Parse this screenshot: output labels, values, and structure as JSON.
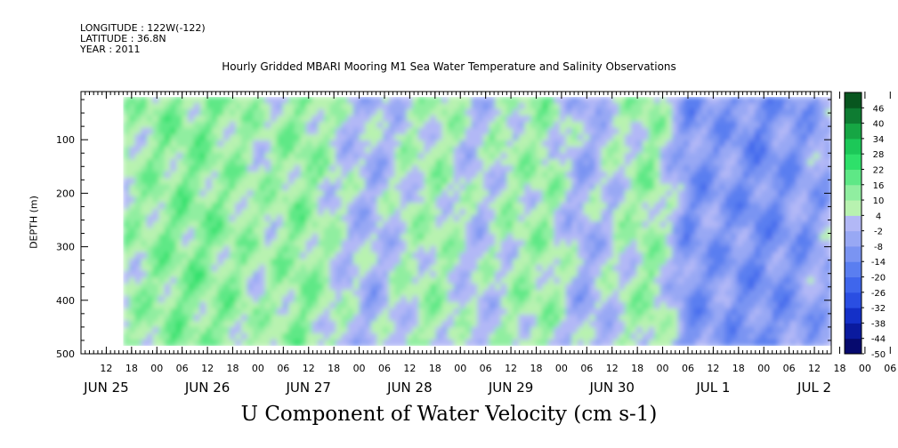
{
  "header": {
    "longitude": "LONGITUDE : 122W(-122)",
    "latitude": "LATITUDE : 36.8N",
    "year": "YEAR : 2011"
  },
  "chart_data": {
    "type": "heatmap",
    "title": "Hourly Gridded MBARI Mooring M1 Sea Water Temperature and Salinity Observations",
    "xlabel": "U Component of Water Velocity (cm s-1)",
    "ylabel": "DEPTH (m)",
    "x_range": [
      "2011-06-25T06:00",
      "2011-07-02T16:00"
    ],
    "data_start": "2011-06-25T16:00",
    "y_range": [
      500,
      10
    ],
    "y_data_range": [
      20,
      485
    ],
    "y_ticks": [
      100,
      200,
      300,
      400,
      500
    ],
    "x_hour_ticks": [
      "12",
      "18",
      "00",
      "06",
      "12",
      "18",
      "00",
      "06",
      "12",
      "18",
      "00",
      "06",
      "12",
      "18",
      "00",
      "06",
      "12",
      "18",
      "00",
      "06",
      "12",
      "18",
      "00",
      "06",
      "12",
      "18",
      "00",
      "06",
      "12",
      "18",
      "00",
      "06"
    ],
    "x_day_labels": [
      "JUN 25",
      "JUN 26",
      "JUN 27",
      "JUN 28",
      "JUN 29",
      "JUN 30",
      "JUL  1",
      "JUL  2"
    ],
    "colorbar": {
      "levels": [
        -50,
        -44,
        -38,
        -32,
        -26,
        -20,
        -14,
        -8,
        -2,
        4,
        10,
        16,
        22,
        28,
        34,
        40,
        46
      ],
      "labels": [
        "46",
        "40",
        "34",
        "28",
        "22",
        "16",
        "10",
        "4",
        "-2",
        "-8",
        "-14",
        "-20",
        "-26",
        "-32",
        "-38",
        "-44",
        "-50"
      ],
      "min": -50,
      "max": 50
    },
    "column_means": [
      {
        "t": "2011-06-25T16:00",
        "u": 8
      },
      {
        "t": "2011-06-26T00:00",
        "u": 12
      },
      {
        "t": "2011-06-26T08:00",
        "u": 14
      },
      {
        "t": "2011-06-26T16:00",
        "u": 11
      },
      {
        "t": "2011-06-27T00:00",
        "u": 7
      },
      {
        "t": "2011-06-27T08:00",
        "u": 13
      },
      {
        "t": "2011-06-27T16:00",
        "u": 5
      },
      {
        "t": "2011-06-28T00:00",
        "u": -2
      },
      {
        "t": "2011-06-28T08:00",
        "u": 6
      },
      {
        "t": "2011-06-28T16:00",
        "u": 9
      },
      {
        "t": "2011-06-29T00:00",
        "u": 1
      },
      {
        "t": "2011-06-29T08:00",
        "u": 8
      },
      {
        "t": "2011-06-29T16:00",
        "u": 10
      },
      {
        "t": "2011-06-30T00:00",
        "u": -3
      },
      {
        "t": "2011-06-30T08:00",
        "u": 4
      },
      {
        "t": "2011-06-30T16:00",
        "u": 12
      },
      {
        "t": "2011-07-01T00:00",
        "u": -10
      },
      {
        "t": "2011-07-01T08:00",
        "u": -8
      },
      {
        "t": "2011-07-01T16:00",
        "u": -12
      },
      {
        "t": "2011-07-02T00:00",
        "u": -9
      },
      {
        "t": "2011-07-02T08:00",
        "u": -4
      }
    ]
  }
}
